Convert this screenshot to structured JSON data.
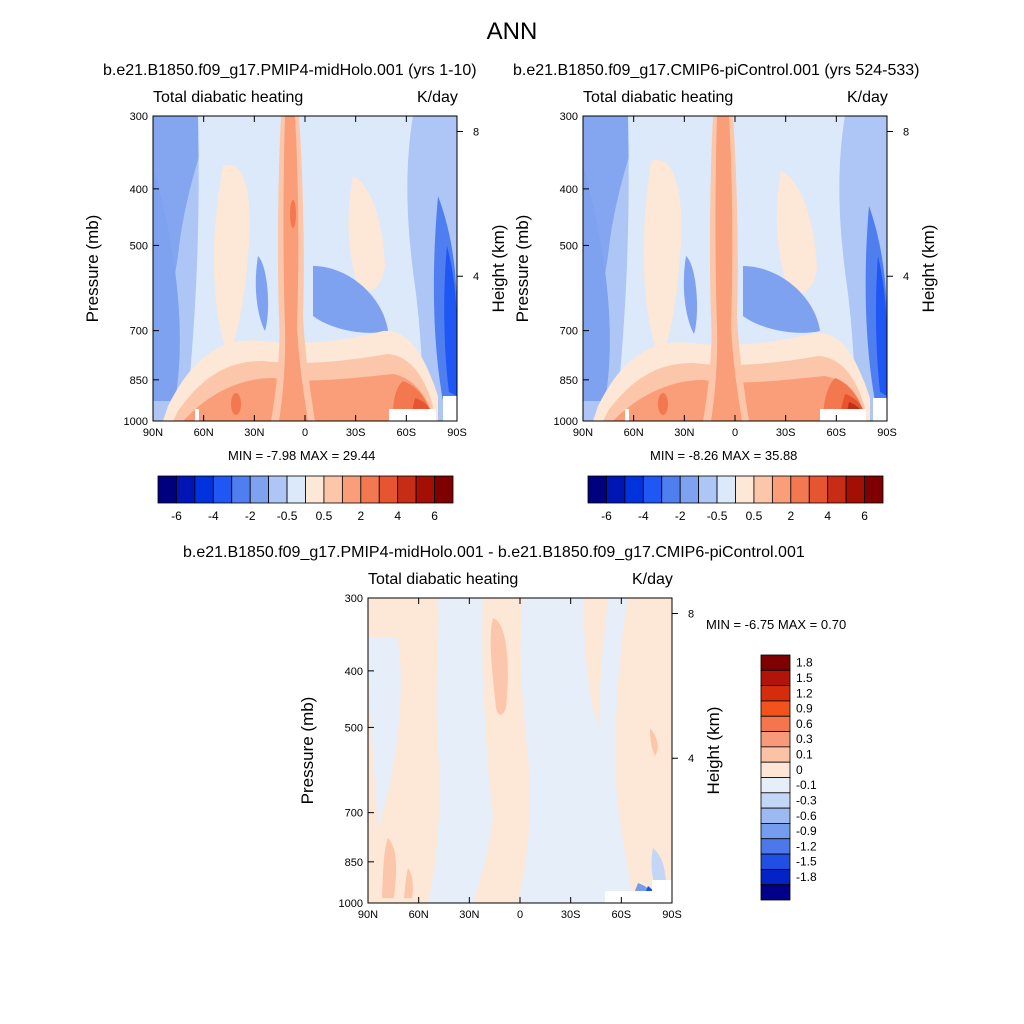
{
  "main_title": "ANN",
  "chart_data": [
    {
      "type": "heatmap",
      "title": "b.e21.B1850.f09_g17.PMIP4-midHolo.001 (yrs 1-10)",
      "left_label": "Total diabatic heating",
      "right_label": "K/day",
      "ylabel": "Pressure (mb)",
      "ylabel_right": "Height (km)",
      "x_ticks": [
        "90N",
        "60N",
        "30N",
        "0",
        "30S",
        "60S",
        "90S"
      ],
      "y_ticks": [
        "300",
        "400",
        "500",
        "700",
        "850",
        "1000"
      ],
      "y_ticks_right": [
        "8",
        "4"
      ],
      "y_log": true,
      "ylim": [
        1000,
        300
      ],
      "min_label": "MIN =  -7.98  MAX =  29.44",
      "colorbar_labels": [
        "-6",
        "-4",
        "-2",
        "-0.5",
        "0.5",
        "2",
        "4",
        "6"
      ]
    },
    {
      "type": "heatmap",
      "title": "b.e21.B1850.f09_g17.CMIP6-piControl.001 (yrs 524-533)",
      "left_label": "Total diabatic heating",
      "right_label": "K/day",
      "ylabel": "Pressure (mb)",
      "ylabel_right": "Height (km)",
      "x_ticks": [
        "90N",
        "60N",
        "30N",
        "0",
        "30S",
        "60S",
        "90S"
      ],
      "y_ticks": [
        "300",
        "400",
        "500",
        "700",
        "850",
        "1000"
      ],
      "y_ticks_right": [
        "8",
        "4"
      ],
      "y_log": true,
      "ylim": [
        1000,
        300
      ],
      "min_label": "MIN =  -8.26  MAX =  35.88",
      "colorbar_labels": [
        "-6",
        "-4",
        "-2",
        "-0.5",
        "0.5",
        "2",
        "4",
        "6"
      ]
    },
    {
      "type": "heatmap",
      "title": "b.e21.B1850.f09_g17.PMIP4-midHolo.001 - b.e21.B1850.f09_g17.CMIP6-piControl.001",
      "left_label": "Total diabatic heating",
      "right_label": "K/day",
      "ylabel": "Pressure (mb)",
      "ylabel_right": "Height (km)",
      "x_ticks": [
        "90N",
        "60N",
        "30N",
        "0",
        "30S",
        "60S",
        "90S"
      ],
      "y_ticks": [
        "300",
        "400",
        "500",
        "700",
        "850",
        "1000"
      ],
      "y_ticks_right": [
        "8",
        "4"
      ],
      "y_log": true,
      "ylim": [
        1000,
        300
      ],
      "min_label": "MIN =  -6.75  MAX =   0.70",
      "colorbar_labels": [
        "1.8",
        "1.5",
        "1.2",
        "0.9",
        "0.6",
        "0.3",
        "0.1",
        "0",
        "-0.1",
        "-0.3",
        "-0.6",
        "-0.9",
        "-1.2",
        "-1.5",
        "-1.8"
      ]
    }
  ],
  "colors": {
    "hcbar": [
      "#00007f",
      "#0016b4",
      "#0033dd",
      "#1f57f5",
      "#4f7ef0",
      "#7fa2f0",
      "#aec6f5",
      "#dce9fa",
      "#fde7d6",
      "#fbc6a9",
      "#f99e78",
      "#f4784f",
      "#e75430",
      "#c72d16",
      "#a30f05",
      "#7f0000"
    ],
    "vcbar": [
      "#7f0000",
      "#b2140a",
      "#d62c0e",
      "#f2531c",
      "#f5764d",
      "#f89a7a",
      "#fbc2a6",
      "#fde6d6",
      "#e6eefa",
      "#c3d6f5",
      "#9cb9f2",
      "#759cef",
      "#4c78ec",
      "#1f4fe5",
      "#0423c6",
      "#000088"
    ]
  }
}
